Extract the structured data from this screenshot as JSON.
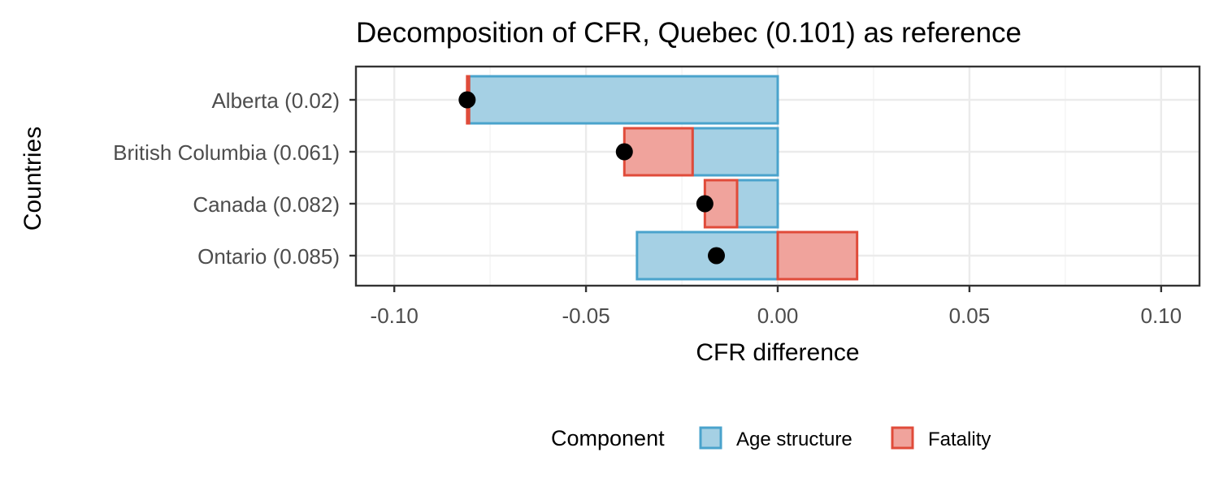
{
  "chart_data": {
    "type": "bar",
    "title": "Decomposition of CFR, Quebec (0.101) as reference",
    "xlabel": "CFR difference",
    "ylabel": "Countries",
    "xlim": [
      -0.11,
      0.11
    ],
    "xticks": [
      -0.1,
      -0.05,
      0.0,
      0.05,
      0.1
    ],
    "xtick_labels": [
      "-0.10",
      "-0.05",
      "0.00",
      "0.05",
      "0.10"
    ],
    "orientation": "horizontal",
    "stacked": true,
    "categories": [
      "Alberta (0.02)",
      "British Columbia (0.061)",
      "Canada (0.082)",
      "Ontario (0.085)"
    ],
    "series": [
      {
        "name": "Age structure",
        "color": "#4aa3cc",
        "fill": "#a5d0e4",
        "values": [
          -0.0805,
          -0.0222,
          -0.0106,
          -0.0367
        ]
      },
      {
        "name": "Fatality",
        "color": "#e04b3a",
        "fill": "#f0a39c",
        "values": [
          -0.0005,
          -0.0178,
          -0.0084,
          0.0207
        ]
      }
    ],
    "totals": [
      -0.081,
      -0.04,
      -0.019,
      -0.016
    ],
    "legend": {
      "title": "Component",
      "position": "bottom",
      "entries": [
        "Age structure",
        "Fatality"
      ]
    },
    "grid": true
  }
}
